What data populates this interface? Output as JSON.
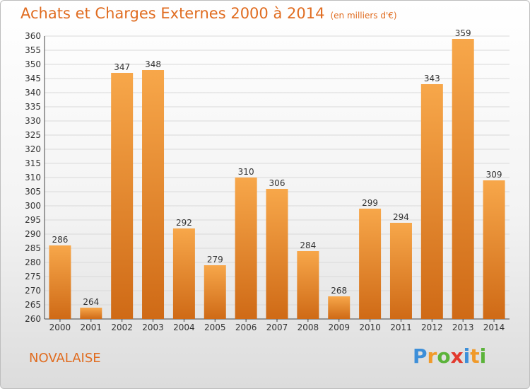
{
  "title": "Achats et Charges Externes 2000 à 2014",
  "unit_note": "(en milliers d'€)",
  "commune": "NOVALAISE",
  "logo": {
    "text": "Proxiti",
    "letters": [
      {
        "char": "P",
        "color": "#3d8fd9"
      },
      {
        "char": "r",
        "color": "#f09a2a"
      },
      {
        "char": "o",
        "color": "#5bb33a"
      },
      {
        "char": "x",
        "color": "#e23a2e"
      },
      {
        "char": "i",
        "color": "#3d8fd9"
      },
      {
        "char": "t",
        "color": "#f09a2a"
      },
      {
        "char": "i",
        "color": "#5bb33a"
      }
    ]
  },
  "colors": {
    "title": "#e06c20",
    "bar_top": "#f7a74a",
    "bar_bottom": "#cf6a16",
    "grid": "#d9d9d9",
    "axis_text": "#333333"
  },
  "chart_data": {
    "type": "bar",
    "categories": [
      "2000",
      "2001",
      "2002",
      "2003",
      "2004",
      "2005",
      "2006",
      "2007",
      "2008",
      "2009",
      "2010",
      "2011",
      "2012",
      "2013",
      "2014"
    ],
    "values": [
      286,
      264,
      347,
      348,
      292,
      279,
      310,
      306,
      284,
      268,
      299,
      294,
      343,
      359,
      309
    ],
    "data_labels": [
      "286",
      "264",
      "347",
      "348",
      "292",
      "279",
      "310",
      "306",
      "284",
      "268",
      "299",
      "294",
      "343",
      "359",
      "309"
    ],
    "ylim": [
      260,
      360
    ],
    "yticks": [
      260,
      265,
      270,
      275,
      280,
      285,
      290,
      295,
      300,
      305,
      310,
      315,
      320,
      325,
      330,
      335,
      340,
      345,
      350,
      355,
      360
    ],
    "grid": true,
    "xlabel": "",
    "ylabel": ""
  }
}
